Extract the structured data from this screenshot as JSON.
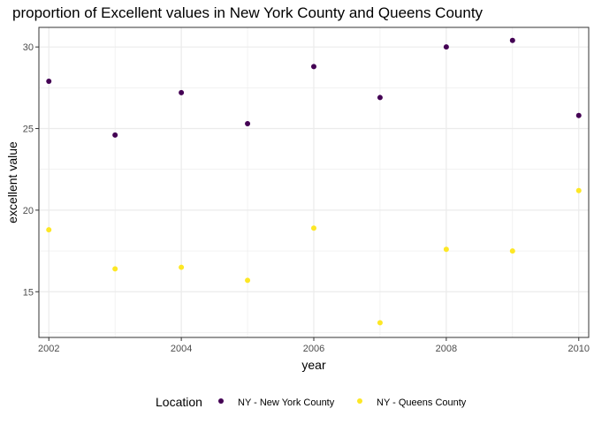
{
  "chart_data": {
    "type": "scatter",
    "title": "proportion of Excellent values in New York County and Queens County",
    "xlabel": "year",
    "ylabel": "excellent value",
    "xlim": [
      2001.85,
      2010.15
    ],
    "ylim": [
      12.2,
      31.2
    ],
    "x_ticks": [
      2002,
      2004,
      2006,
      2008,
      2010
    ],
    "x_tick_labels": [
      "2002",
      "2004",
      "2006",
      "2008",
      "2010"
    ],
    "x_minor_ticks": [
      2003,
      2005,
      2007,
      2009
    ],
    "y_ticks": [
      15,
      20,
      25,
      30
    ],
    "y_tick_labels": [
      "15",
      "20",
      "25",
      "30"
    ],
    "y_minor_ticks": [
      12.5,
      17.5,
      22.5,
      27.5
    ],
    "grid": true,
    "legend": {
      "title": "Location",
      "placement": "bottom"
    },
    "series": [
      {
        "name": "NY - New York County",
        "color": "#440154",
        "x": [
          2002,
          2003,
          2004,
          2005,
          2006,
          2007,
          2008,
          2009,
          2010
        ],
        "y": [
          27.9,
          24.6,
          27.2,
          25.3,
          28.8,
          26.9,
          30.0,
          30.4,
          25.8
        ]
      },
      {
        "name": "NY - Queens County",
        "color": "#FDE725",
        "x": [
          2002,
          2003,
          2004,
          2005,
          2006,
          2007,
          2008,
          2009,
          2010
        ],
        "y": [
          18.8,
          16.4,
          16.5,
          15.7,
          18.9,
          13.1,
          17.6,
          17.5,
          21.2
        ]
      }
    ]
  }
}
